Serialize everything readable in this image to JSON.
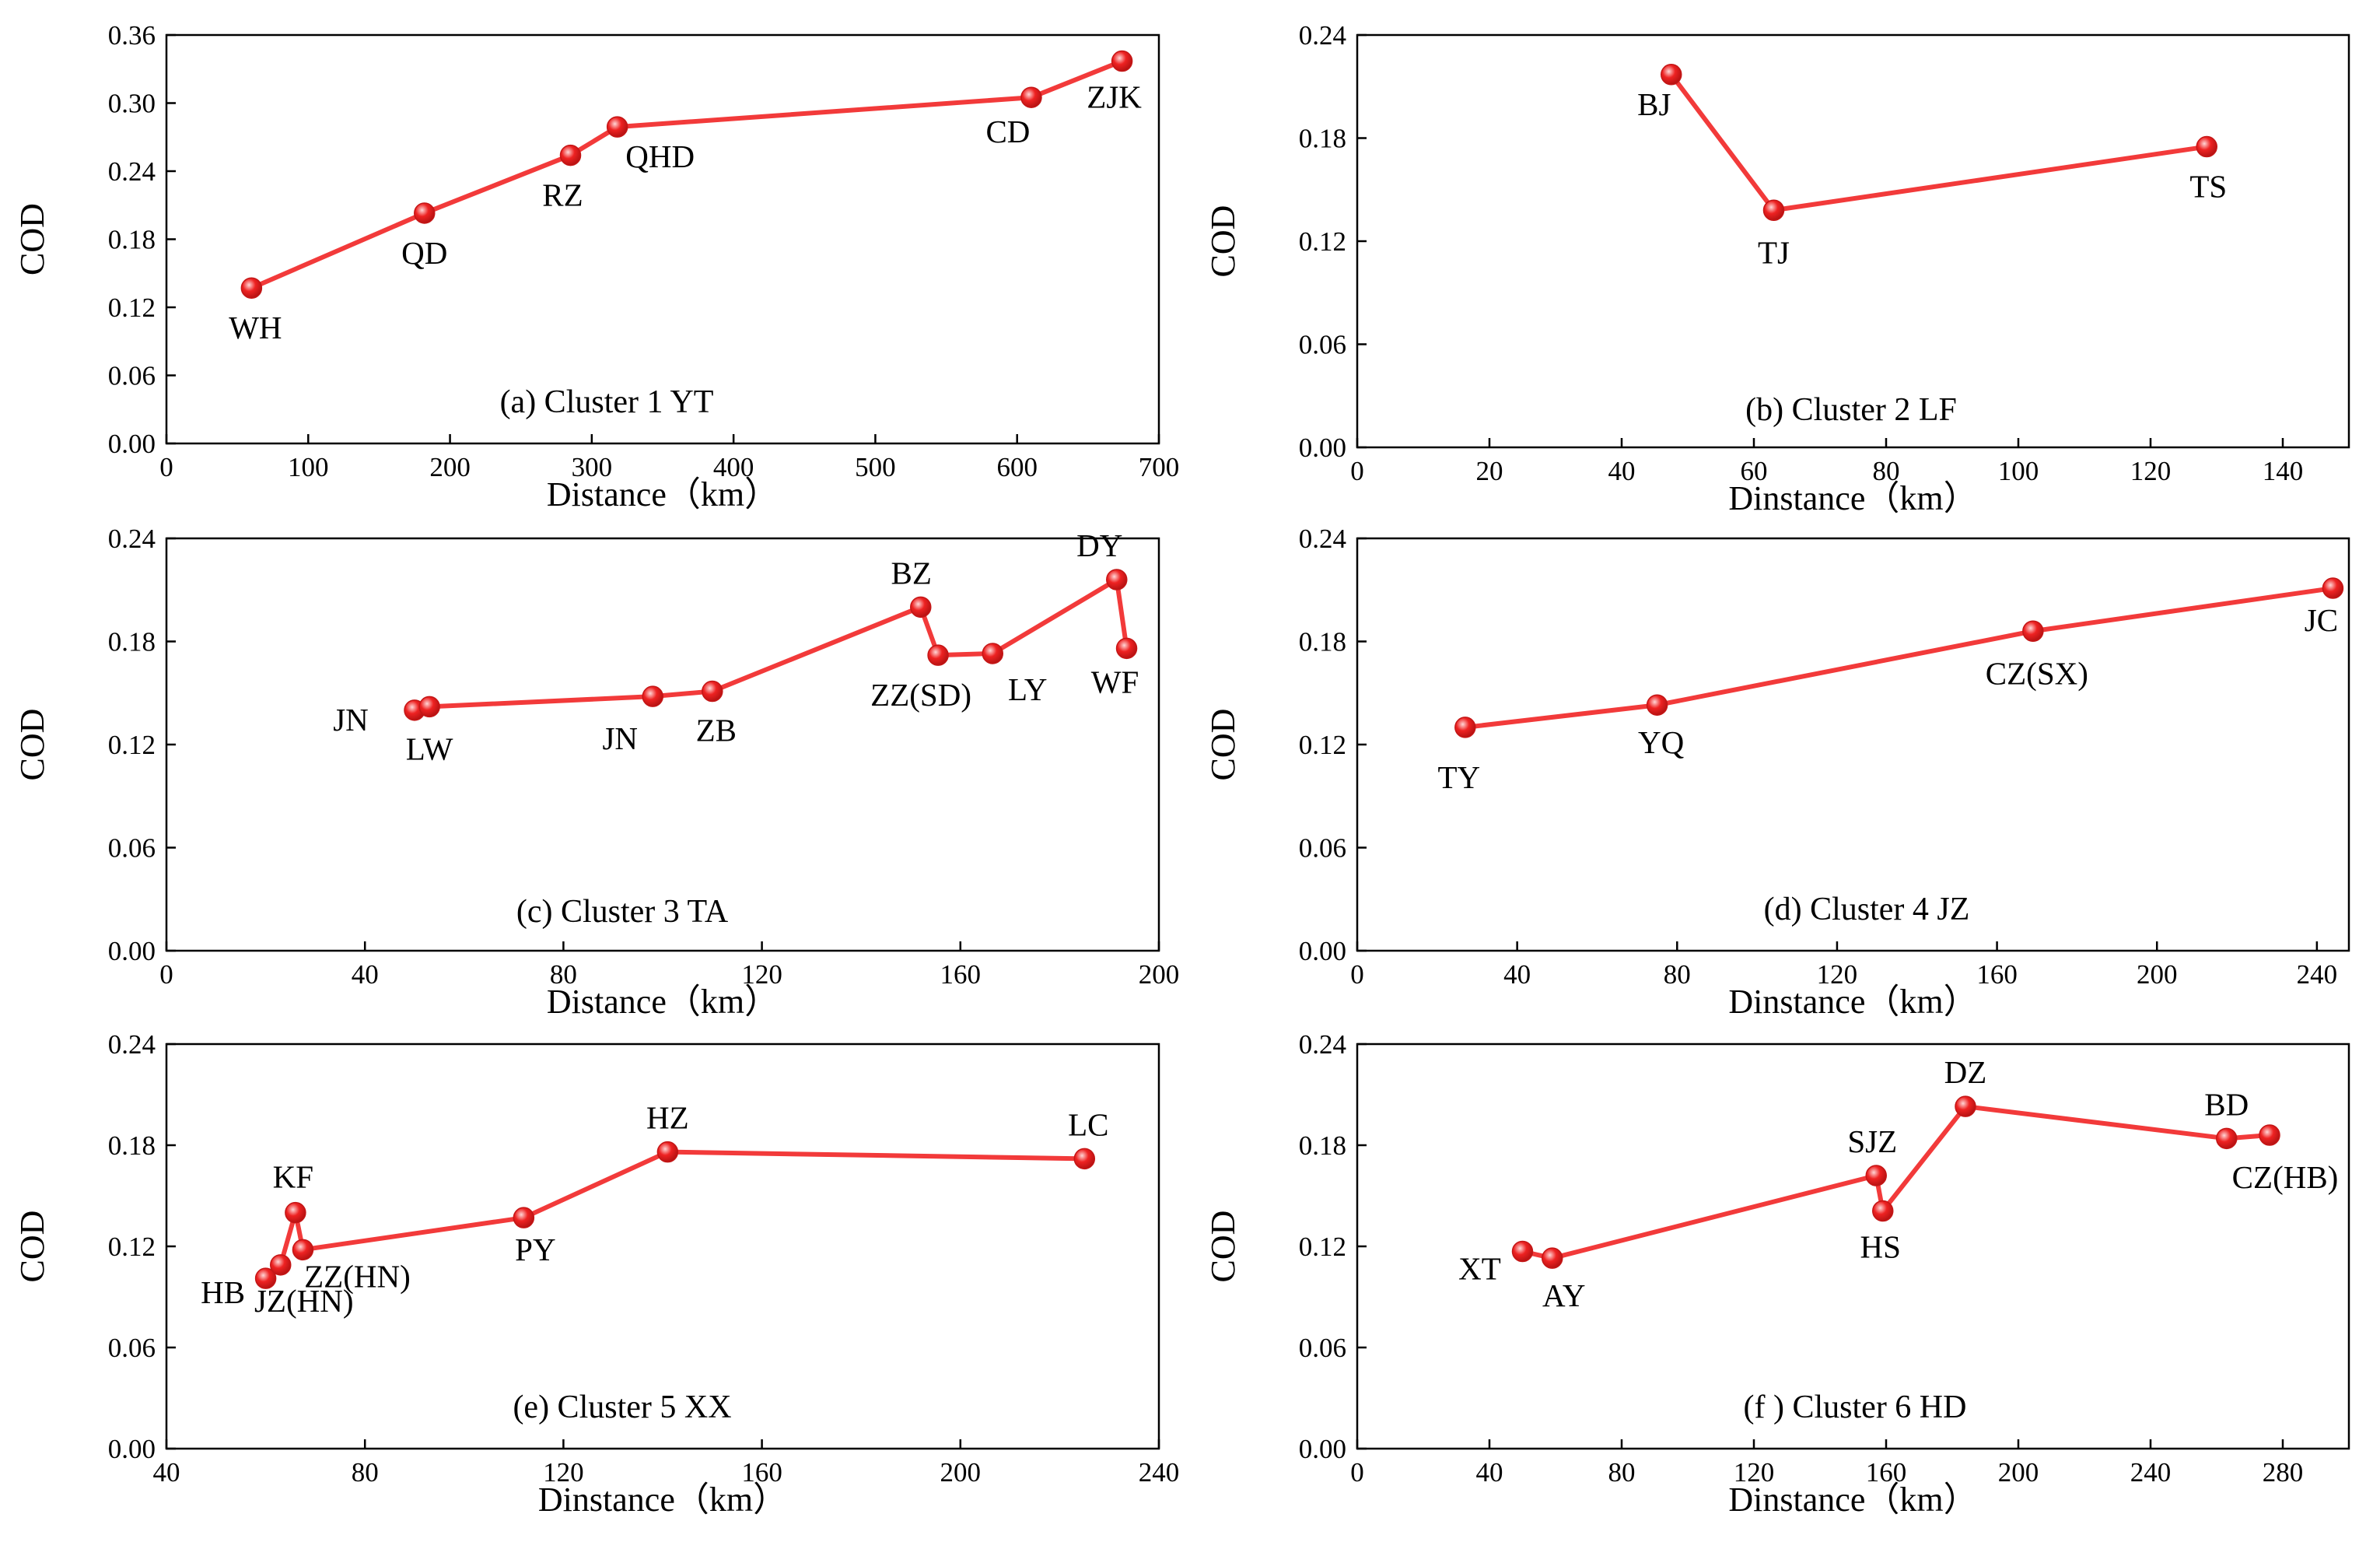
{
  "chart_data": [
    {
      "type": "line",
      "panel": "a",
      "caption": "(a)  Cluster 1 YT",
      "xlabel": "Distance（km）",
      "ylabel": "COD",
      "xlim": [
        0,
        700
      ],
      "ylim": [
        0,
        0.36
      ],
      "xticks": [
        "0",
        "100",
        "200",
        "300",
        "400",
        "500",
        "600",
        "700"
      ],
      "yticks": [
        "0.00",
        "0.06",
        "0.12",
        "0.18",
        "0.24",
        "0.30",
        "0.36"
      ],
      "points": [
        {
          "label": "WH",
          "x": 60,
          "y": 0.137
        },
        {
          "label": "QD",
          "x": 182,
          "y": 0.203
        },
        {
          "label": "RZ",
          "x": 285,
          "y": 0.254
        },
        {
          "label": "QHD",
          "x": 318,
          "y": 0.279
        },
        {
          "label": "CD",
          "x": 610,
          "y": 0.305
        },
        {
          "label": "ZJK",
          "x": 674,
          "y": 0.337
        }
      ]
    },
    {
      "type": "line",
      "panel": "b",
      "caption": "(b)  Cluster 2  LF",
      "xlabel": "Dinstance（km）",
      "ylabel": "COD",
      "xlim": [
        0,
        150
      ],
      "ylim": [
        0,
        0.24
      ],
      "xticks": [
        "0",
        "20",
        "40",
        "60",
        "80",
        "100",
        "120",
        "140"
      ],
      "yticks": [
        "0.00",
        "0.06",
        "0.12",
        "0.18",
        "0.24"
      ],
      "points": [
        {
          "label": "BJ",
          "x": 47.5,
          "y": 0.217
        },
        {
          "label": "TJ",
          "x": 63,
          "y": 0.138
        },
        {
          "label": "TS",
          "x": 128.5,
          "y": 0.175
        }
      ]
    },
    {
      "type": "line",
      "panel": "c",
      "caption": "(c)  Cluster 3  TA",
      "xlabel": "Distance（km）",
      "ylabel": "COD",
      "xlim": [
        0,
        200
      ],
      "ylim": [
        0,
        0.24
      ],
      "xticks": [
        "0",
        "40",
        "80",
        "120",
        "160",
        "200"
      ],
      "yticks": [
        "0.00",
        "0.06",
        "0.12",
        "0.18",
        "0.24"
      ],
      "points": [
        {
          "label": "JN",
          "x": 50,
          "y": 0.14
        },
        {
          "label": "LW",
          "x": 53,
          "y": 0.142
        },
        {
          "label": "JN",
          "x": 98,
          "y": 0.148
        },
        {
          "label": "ZB",
          "x": 110,
          "y": 0.151
        },
        {
          "label": "BZ",
          "x": 152,
          "y": 0.2
        },
        {
          "label": "ZZ(SD)",
          "x": 155.5,
          "y": 0.172
        },
        {
          "label": "LY",
          "x": 166.5,
          "y": 0.173
        },
        {
          "label": "DY",
          "x": 191.5,
          "y": 0.216
        },
        {
          "label": "WF",
          "x": 193.5,
          "y": 0.176
        }
      ]
    },
    {
      "type": "line",
      "panel": "d",
      "caption": "(d)  Cluster 4  JZ",
      "xlabel": "Dinstance（km）",
      "ylabel": "COD",
      "xlim": [
        0,
        248
      ],
      "ylim": [
        0,
        0.24
      ],
      "xticks": [
        "0",
        "40",
        "80",
        "120",
        "160",
        "200",
        "240"
      ],
      "yticks": [
        "0.00",
        "0.06",
        "0.12",
        "0.18",
        "0.24"
      ],
      "points": [
        {
          "label": "TY",
          "x": 27,
          "y": 0.13
        },
        {
          "label": "YQ",
          "x": 75,
          "y": 0.143
        },
        {
          "label": "CZ(SX)",
          "x": 169,
          "y": 0.186
        },
        {
          "label": "JC",
          "x": 244,
          "y": 0.211
        }
      ]
    },
    {
      "type": "line",
      "panel": "e",
      "caption": "(e)  Cluster 5 XX",
      "xlabel": "Dinstance（km）",
      "ylabel": "COD",
      "xlim": [
        40,
        240
      ],
      "ylim": [
        0,
        0.24
      ],
      "xticks": [
        "40",
        "80",
        "120",
        "160",
        "200",
        "240"
      ],
      "yticks": [
        "0.00",
        "0.06",
        "0.12",
        "0.18",
        "0.24"
      ],
      "points": [
        {
          "label": "HB",
          "x": 60,
          "y": 0.101
        },
        {
          "label": "JZ(HN)",
          "x": 63,
          "y": 0.109
        },
        {
          "label": "KF",
          "x": 66,
          "y": 0.14
        },
        {
          "label": "ZZ(HN)",
          "x": 67.5,
          "y": 0.118
        },
        {
          "label": "PY",
          "x": 112,
          "y": 0.137
        },
        {
          "label": "HZ",
          "x": 141,
          "y": 0.176
        },
        {
          "label": "LC",
          "x": 225,
          "y": 0.172
        }
      ]
    },
    {
      "type": "line",
      "panel": "f",
      "caption": "(f ) Cluster 6  HD",
      "xlabel": "Dinstance（km）",
      "ylabel": "COD",
      "xlim": [
        0,
        300
      ],
      "ylim": [
        0,
        0.24
      ],
      "xticks": [
        "0",
        "40",
        "80",
        "120",
        "160",
        "200",
        "240",
        "280"
      ],
      "yticks": [
        "0.00",
        "0.06",
        "0.12",
        "0.18",
        "0.24"
      ],
      "points": [
        {
          "label": "XT",
          "x": 50,
          "y": 0.117
        },
        {
          "label": "AY",
          "x": 59,
          "y": 0.113
        },
        {
          "label": "SJZ",
          "x": 157,
          "y": 0.162
        },
        {
          "label": "HS",
          "x": 159,
          "y": 0.141
        },
        {
          "label": "DZ",
          "x": 184,
          "y": 0.203
        },
        {
          "label": "BD",
          "x": 263,
          "y": 0.184
        },
        {
          "label": "CZ(HB)",
          "x": 276,
          "y": 0.186
        }
      ]
    }
  ],
  "style": {
    "line_color": "#f23a3a",
    "marker_color": "#ee2222",
    "marker_highlight": "#ffd6d6",
    "axis_color": "#000000"
  }
}
